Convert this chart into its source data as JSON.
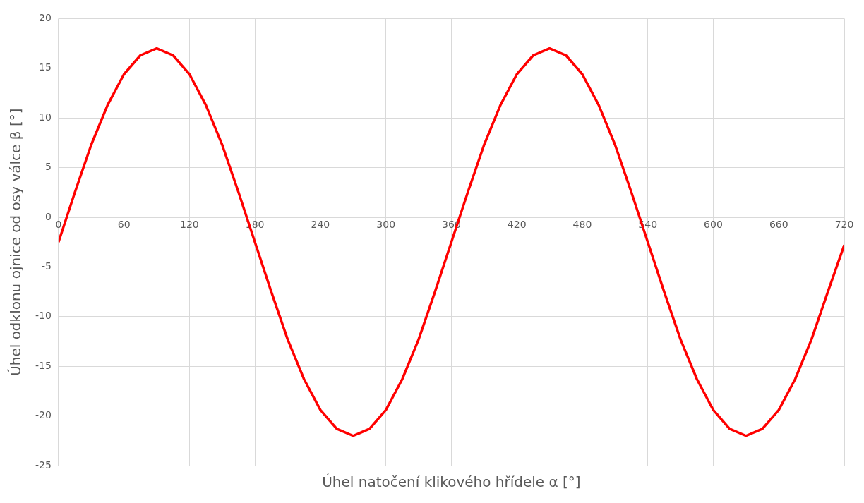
{
  "chart_data": {
    "type": "line",
    "xlabel": "Úhel natočení klikového hřídele α [°]",
    "ylabel": "Úhel odklonu ojnice od osy válce β [°]",
    "x": [
      0,
      15,
      30,
      45,
      60,
      75,
      90,
      105,
      120,
      135,
      150,
      165,
      180,
      195,
      210,
      225,
      240,
      255,
      270,
      285,
      300,
      315,
      330,
      345,
      360,
      375,
      390,
      405,
      420,
      435,
      450,
      465,
      480,
      495,
      510,
      525,
      540,
      555,
      570,
      585,
      600,
      615,
      630,
      645,
      660,
      675,
      690,
      705,
      720
    ],
    "series": [
      {
        "color": "#ff0000",
        "values": [
          -2.5,
          2.5,
          7.3,
          11.3,
          14.4,
          16.3,
          17,
          16.3,
          14.4,
          11.3,
          7.3,
          2.5,
          -2.5,
          -7.5,
          -12.3,
          -16.3,
          -19.4,
          -21.3,
          -22,
          -21.3,
          -19.4,
          -16.3,
          -12.3,
          -7.5,
          -2.5,
          2.5,
          7.3,
          11.3,
          14.4,
          16.3,
          17,
          16.3,
          14.4,
          11.3,
          7.3,
          2.5,
          -2.5,
          -7.5,
          -12.3,
          -16.3,
          -19.4,
          -21.3,
          -22,
          -21.3,
          -19.4,
          -16.3,
          -12.3,
          -7.5,
          -2.8
        ]
      }
    ],
    "xlim": [
      0,
      720
    ],
    "xticks": [
      0,
      60,
      120,
      180,
      240,
      300,
      360,
      420,
      480,
      540,
      600,
      660,
      720
    ],
    "ylim": [
      -25,
      20
    ],
    "yticks": [
      -25,
      -20,
      -15,
      -10,
      -5,
      0,
      5,
      10,
      15,
      20
    ],
    "grid": true,
    "legend": false,
    "marker": "none",
    "line_style": "solid"
  }
}
